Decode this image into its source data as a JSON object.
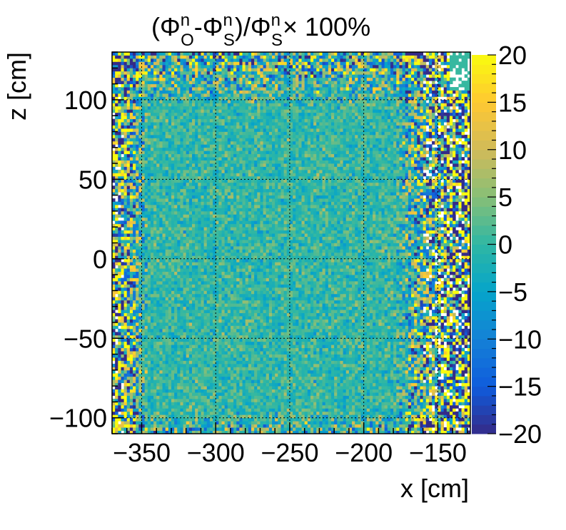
{
  "chart_data": {
    "type": "heatmap",
    "title": {
      "prefix": "(",
      "phi": "Φ",
      "sup": "n",
      "sub_o": "O",
      "sub_s": "S",
      "minus": "-",
      "close_slash": ")/",
      "times": "× 100%"
    },
    "xlabel": "x [cm]",
    "ylabel": "z [cm]",
    "xlim": [
      -370,
      -128
    ],
    "ylim": [
      -110,
      130
    ],
    "x_ticks": [
      -350,
      -300,
      -250,
      -200,
      -150
    ],
    "x_tick_labels": [
      "−350",
      "−300",
      "−250",
      "−200",
      "−150"
    ],
    "y_ticks": [
      -100,
      -50,
      0,
      50,
      100
    ],
    "y_tick_labels": [
      "−100",
      "−50",
      "0",
      "50",
      "100"
    ],
    "zlim": [
      -20,
      20
    ],
    "z_ticks": [
      -20,
      -15,
      -10,
      -5,
      0,
      5,
      10,
      15,
      20
    ],
    "z_tick_labels": [
      "−20",
      "−15",
      "−10",
      "−5",
      "0",
      "5",
      "10",
      "15",
      "20"
    ],
    "grid": true,
    "colormap": "parula-like",
    "colormap_colors": [
      "#352a87",
      "#0f5cdd",
      "#1481d6",
      "#06a4ca",
      "#2eb7a4",
      "#87bf77",
      "#d1bb59",
      "#fec832",
      "#f9fb0e"
    ],
    "bin_size_cm": 2,
    "description_of_values": "Relative difference in percent; center region near 0 (teal) with small fluctuations, edges saturate toward ±20 (yellow/dark blue), white where empty."
  }
}
